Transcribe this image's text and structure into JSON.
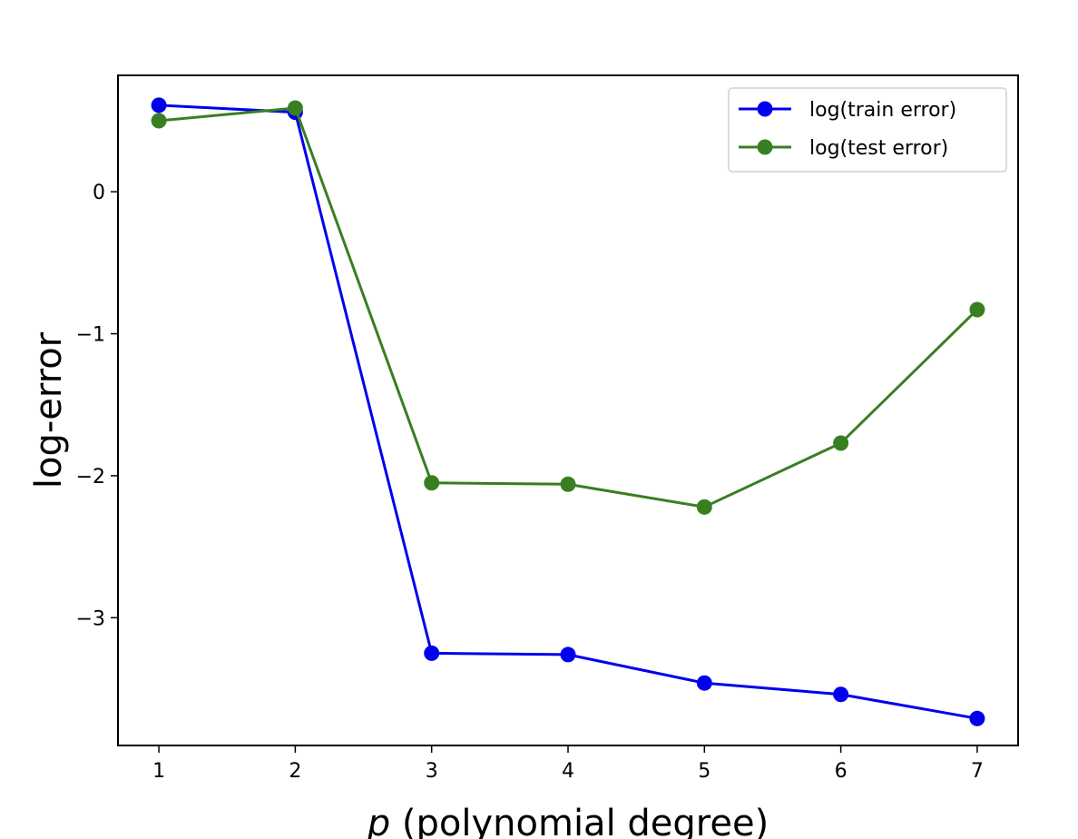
{
  "chart_data": {
    "type": "line",
    "title": "",
    "xlabel_var": "p",
    "xlabel_rest": " (polynomial degree)",
    "ylabel": "log-error",
    "x": [
      1,
      2,
      3,
      4,
      5,
      6,
      7
    ],
    "xlim": [
      0.7,
      7.3
    ],
    "ylim": [
      -3.9,
      0.82
    ],
    "xticks": [
      1,
      2,
      3,
      4,
      5,
      6,
      7
    ],
    "yticks": [
      0,
      -1,
      -2,
      -3
    ],
    "ytick_labels": [
      "0",
      "−1",
      "−2",
      "−3"
    ],
    "legend_position": "top-right",
    "grid": false,
    "series": [
      {
        "name": "log(train error)",
        "color": "#0000ee",
        "values": [
          0.61,
          0.56,
          -3.25,
          -3.26,
          -3.46,
          -3.54,
          -3.71
        ]
      },
      {
        "name": "log(test error)",
        "color": "#387f22",
        "values": [
          0.5,
          0.59,
          -2.05,
          -2.06,
          -2.22,
          -1.77,
          -0.83
        ]
      }
    ]
  }
}
